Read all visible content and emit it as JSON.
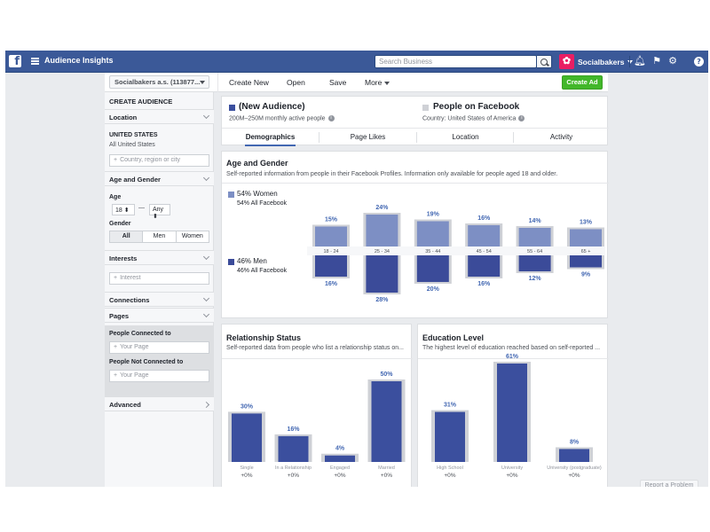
{
  "topbar": {
    "app_title": "Audience Insights",
    "search_placeholder": "Search Business",
    "account_name": "Socialbakers"
  },
  "toolbar": {
    "account_select": "Socialbakers a.s. (113877...",
    "create_new": "Create New",
    "open": "Open",
    "save": "Save",
    "more": "More",
    "create_ad": "Create Ad"
  },
  "sidebar": {
    "header": "CREATE AUDIENCE",
    "location_label": "Location",
    "country": "UNITED STATES",
    "country_sub": "All United States",
    "location_placeholder": "Country, region or city",
    "age_gender_label": "Age and Gender",
    "age_label": "Age",
    "age_min": "18",
    "age_dash": "—",
    "age_max": "Any",
    "gender_label": "Gender",
    "gender_options": [
      "All",
      "Men",
      "Women"
    ],
    "interests_label": "Interests",
    "interest_placeholder": "Interest",
    "connections_label": "Connections",
    "pages_label": "Pages",
    "people_connected_label": "People Connected to",
    "page_placeholder_1": "Your Page",
    "people_not_connected_label": "People Not Connected to",
    "page_placeholder_2": "Your Page",
    "advanced_label": "Advanced"
  },
  "audience": {
    "new_title": "(New Audience)",
    "new_sub": "200M–250M monthly active people",
    "fb_title": "People on Facebook",
    "fb_sub": "Country: United States of America",
    "tabs": [
      "Demographics",
      "Page Likes",
      "Location",
      "Activity"
    ],
    "colors": {
      "primary": "#3b4f9e",
      "secondary": "#cfd1d6",
      "women": "#7d8fc4",
      "men": "#3b4b99"
    }
  },
  "age_gender": {
    "title": "Age and Gender",
    "desc": "Self-reported information from people in their Facebook Profiles. Information only available for people aged 18 and older.",
    "women_pct": "54% Women",
    "women_fb": "54% All Facebook",
    "men_pct": "46% Men",
    "men_fb": "46% All Facebook",
    "chart_data": {
      "type": "bar",
      "categories": [
        "18 - 24",
        "25 - 34",
        "35 - 44",
        "45 - 54",
        "55 - 64",
        "65 +"
      ],
      "series": [
        {
          "name": "Women",
          "values": [
            15,
            24,
            19,
            16,
            14,
            13
          ],
          "labels": [
            "15%",
            "24%",
            "19%",
            "16%",
            "14%",
            "13%"
          ],
          "fb_values": [
            15,
            24,
            19,
            16,
            14,
            13
          ]
        },
        {
          "name": "Men",
          "values": [
            16,
            28,
            20,
            16,
            12,
            9
          ],
          "labels": [
            "16%",
            "28%",
            "20%",
            "16%",
            "12%",
            "9%"
          ],
          "fb_values": [
            16,
            28,
            20,
            16,
            12,
            9
          ]
        }
      ]
    }
  },
  "relationship": {
    "title": "Relationship Status",
    "desc": "Self-reported data from people who list a relationship status on...",
    "chart_data": {
      "type": "bar",
      "categories": [
        "Single",
        "In a Relationship",
        "Engaged",
        "Married"
      ],
      "values": [
        30,
        16,
        4,
        50
      ],
      "labels": [
        "30%",
        "16%",
        "4%",
        "50%"
      ],
      "fb_values": [
        30,
        16,
        4,
        50
      ],
      "changes": [
        "+0%",
        "+0%",
        "+0%",
        "+0%"
      ]
    }
  },
  "education": {
    "title": "Education Level",
    "desc": "The highest level of education reached based on self-reported ...",
    "chart_data": {
      "type": "bar",
      "categories": [
        "High School",
        "University",
        "University (postgraduate)"
      ],
      "values": [
        31,
        61,
        8
      ],
      "labels": [
        "31%",
        "61%",
        "8%"
      ],
      "fb_values": [
        31,
        61,
        8
      ],
      "changes": [
        "+0%",
        "+0%",
        "+0%"
      ]
    }
  },
  "report_problem": "Report a Problem"
}
